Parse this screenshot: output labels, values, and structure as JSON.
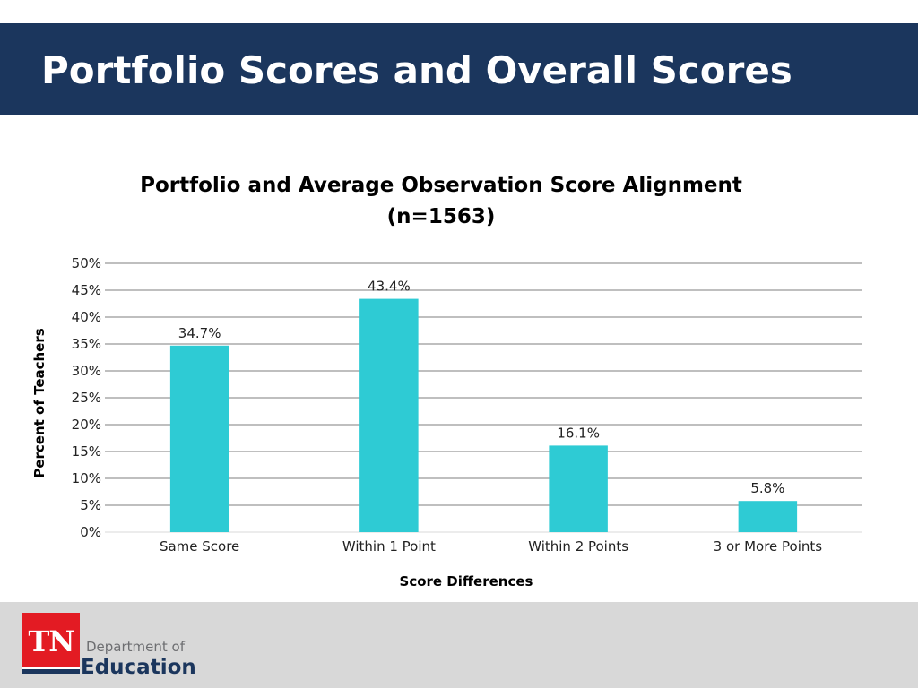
{
  "slide": {
    "title": "Portfolio Scores and Overall Scores"
  },
  "footer": {
    "logo_text": "TN",
    "dept_line1": "Department of",
    "dept_line2": "Education"
  },
  "colors": {
    "header_bg": "#1b365d",
    "bar": "#2ecbd4",
    "footer_bg": "#d8d8d8",
    "logo_red": "#e31b23"
  },
  "chart_data": {
    "type": "bar",
    "title": "Portfolio and Average Observation Score Alignment",
    "subtitle": "(n=1563)",
    "xlabel": "Score Differences",
    "ylabel": "Percent of Teachers",
    "categories": [
      "Same Score",
      "Within 1 Point",
      "Within 2 Points",
      "3 or More Points"
    ],
    "values": [
      34.7,
      43.4,
      16.1,
      5.8
    ],
    "data_labels": [
      "34.7%",
      "43.4%",
      "16.1%",
      "5.8%"
    ],
    "ylim": [
      0,
      50
    ],
    "yticks": [
      0,
      5,
      10,
      15,
      20,
      25,
      30,
      35,
      40,
      45,
      50
    ],
    "ytick_labels": [
      "0%",
      "5%",
      "10%",
      "15%",
      "20%",
      "25%",
      "30%",
      "35%",
      "40%",
      "45%",
      "50%"
    ],
    "grid": true,
    "legend": "none"
  }
}
